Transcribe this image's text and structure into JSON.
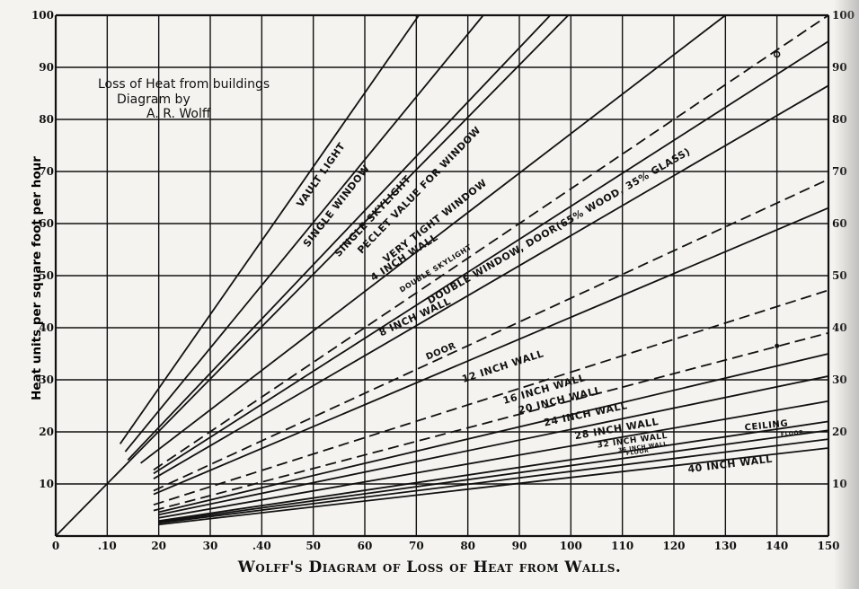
{
  "caption": "Wolff's Diagram of Loss of Heat from Walls.",
  "chart_data": {
    "type": "line",
    "title": "Loss of Heat from buildings",
    "subtitle": [
      "Diagram by",
      "A. R. Wolff"
    ],
    "xlabel": "",
    "ylabel": "Heat units per square foot per hour",
    "xlim": [
      0,
      150
    ],
    "ylim": [
      0,
      100
    ],
    "grid": true,
    "x_ticks": [
      "0",
      ".10",
      "20",
      "30",
      ".40",
      "50",
      "60",
      "70",
      "80",
      "90",
      "100",
      "110",
      "120",
      "130",
      "140",
      "150"
    ],
    "y_ticks_left": [
      "",
      "10",
      "20",
      "30",
      "40",
      "50",
      "60",
      "70",
      "80",
      "90",
      "100"
    ],
    "y_ticks_right": [
      "",
      "10",
      "20",
      "30",
      "40",
      "50",
      "60",
      "70",
      "80",
      "90",
      "100"
    ],
    "series": [
      {
        "name": "Vault Light",
        "style": "solid",
        "x": [
          12.5,
          70.5
        ],
        "y": [
          17.7,
          100
        ]
      },
      {
        "name": "Single Window",
        "style": "solid",
        "x": [
          13.5,
          83
        ],
        "y": [
          16.2,
          100
        ]
      },
      {
        "name": "Single Skylight",
        "style": "solid",
        "x": [
          14,
          96
        ],
        "y": [
          14.6,
          100
        ]
      },
      {
        "name": "Peclet Value for Window",
        "style": "solid",
        "x": [
          0,
          99.5
        ],
        "y": [
          0,
          100
        ]
      },
      {
        "name": "Very Tight Window",
        "style": "solid",
        "x": [
          16.5,
          130
        ],
        "y": [
          14,
          100
        ]
      },
      {
        "name": "4 Inch Wall",
        "style": "dashed",
        "x": [
          19,
          150
        ],
        "y": [
          12.7,
          100
        ]
      },
      {
        "name": "Double Skylight",
        "style": "solid",
        "x": [
          19,
          150
        ],
        "y": [
          12,
          95
        ]
      },
      {
        "name": "Double Window, Door (65% Wood, 35% Glass)",
        "style": "solid",
        "x": [
          19,
          150
        ],
        "y": [
          11,
          86.5
        ]
      },
      {
        "name": "8 Inch Wall",
        "style": "dashed",
        "x": [
          19,
          150
        ],
        "y": [
          8.7,
          68.5
        ]
      },
      {
        "name": "Door",
        "style": "solid",
        "x": [
          19,
          150
        ],
        "y": [
          8,
          63
        ]
      },
      {
        "name": "12 Inch Wall",
        "style": "dashed",
        "x": [
          19,
          150
        ],
        "y": [
          6,
          47.2
        ]
      },
      {
        "name": "16 Inch Wall",
        "style": "dashed",
        "x": [
          19,
          150
        ],
        "y": [
          4.9,
          39
        ]
      },
      {
        "name": "20 Inch Wall",
        "style": "solid",
        "x": [
          20,
          150
        ],
        "y": [
          4.6,
          35
        ]
      },
      {
        "name": "24 Inch Wall",
        "style": "solid",
        "x": [
          20,
          150
        ],
        "y": [
          4.1,
          30.7
        ]
      },
      {
        "name": "28 Inch Wall",
        "style": "solid",
        "x": [
          20,
          150
        ],
        "y": [
          3.5,
          25.9
        ]
      },
      {
        "name": "32 Inch Wall / Ceiling",
        "style": "solid",
        "x": [
          20,
          150
        ],
        "y": [
          2.9,
          22
        ]
      },
      {
        "name": "36 Inch Wall / Floor",
        "style": "solid",
        "x": [
          20,
          150
        ],
        "y": [
          2.7,
          20.3
        ]
      },
      {
        "name": "Floor",
        "style": "solid",
        "x": [
          20,
          150
        ],
        "y": [
          2.5,
          18.6
        ]
      },
      {
        "name": "40 Inch Wall",
        "style": "solid",
        "x": [
          20,
          150
        ],
        "y": [
          2.2,
          16.9
        ]
      }
    ],
    "annotations": [
      {
        "text": "VAULT LIGHT",
        "x": 52,
        "y": 69,
        "angle": -55,
        "size": 11
      },
      {
        "text": "SINGLE WINDOW",
        "x": 55,
        "y": 63,
        "angle": -52,
        "size": 11
      },
      {
        "text": "SINGLE SKYLIGHT",
        "x": 62,
        "y": 61,
        "angle": -47,
        "size": 11
      },
      {
        "text": "PECLET VALUE  FOR WINDOW",
        "x": 71,
        "y": 66,
        "angle": -46,
        "size": 11
      },
      {
        "text": "VERY TIGHT WINDOW",
        "x": 74,
        "y": 60,
        "angle": -38,
        "size": 11
      },
      {
        "text": "4 INCH WALL",
        "x": 68,
        "y": 53,
        "angle": -33,
        "size": 11
      },
      {
        "text": "DOUBLE SKYLIGHT",
        "x": 74,
        "y": 51,
        "angle": -32,
        "size": 8
      },
      {
        "text": "DOUBLE WINDOW, DOOR(65% WOOD, 35% GLASS)",
        "x": 98,
        "y": 59,
        "angle": -30,
        "size": 11
      },
      {
        "text": "8 INCH WALL",
        "x": 70,
        "y": 41.5,
        "angle": -25,
        "size": 11
      },
      {
        "text": "DOOR",
        "x": 75,
        "y": 35,
        "angle": -23,
        "size": 10
      },
      {
        "text": "12 INCH WALL",
        "x": 87,
        "y": 32,
        "angle": -18,
        "size": 11
      },
      {
        "text": "16 INCH WALL",
        "x": 95,
        "y": 27.6,
        "angle": -16,
        "size": 11
      },
      {
        "text": "20 INCH WALL",
        "x": 98,
        "y": 25.5,
        "angle": -14,
        "size": 11
      },
      {
        "text": "24 INCH WALL",
        "x": 103,
        "y": 22.8,
        "angle": -12,
        "size": 11
      },
      {
        "text": "28 INCH WALL",
        "x": 109,
        "y": 20,
        "angle": -10,
        "size": 11
      },
      {
        "text": "CEILING",
        "x": 138,
        "y": 20.7,
        "angle": -6,
        "size": 10
      },
      {
        "text": "32 INCH WALL",
        "x": 112,
        "y": 17.9,
        "angle": -8,
        "size": 9
      },
      {
        "text": "36 INCH WALL",
        "x": 114,
        "y": 16.8,
        "angle": -8,
        "size": 6
      },
      {
        "text": "FLOOR",
        "x": 113,
        "y": 15.8,
        "angle": -8,
        "size": 6
      },
      {
        "text": "FLOOR",
        "x": 143,
        "y": 19.4,
        "angle": -6,
        "size": 6
      },
      {
        "text": "40 INCH WALL",
        "x": 131,
        "y": 13.2,
        "angle": -7,
        "size": 11
      }
    ],
    "markers": [
      {
        "x": 140,
        "y": 92.5,
        "shape": "circle"
      },
      {
        "x": 140,
        "y": 36.5,
        "shape": "dot"
      }
    ]
  }
}
